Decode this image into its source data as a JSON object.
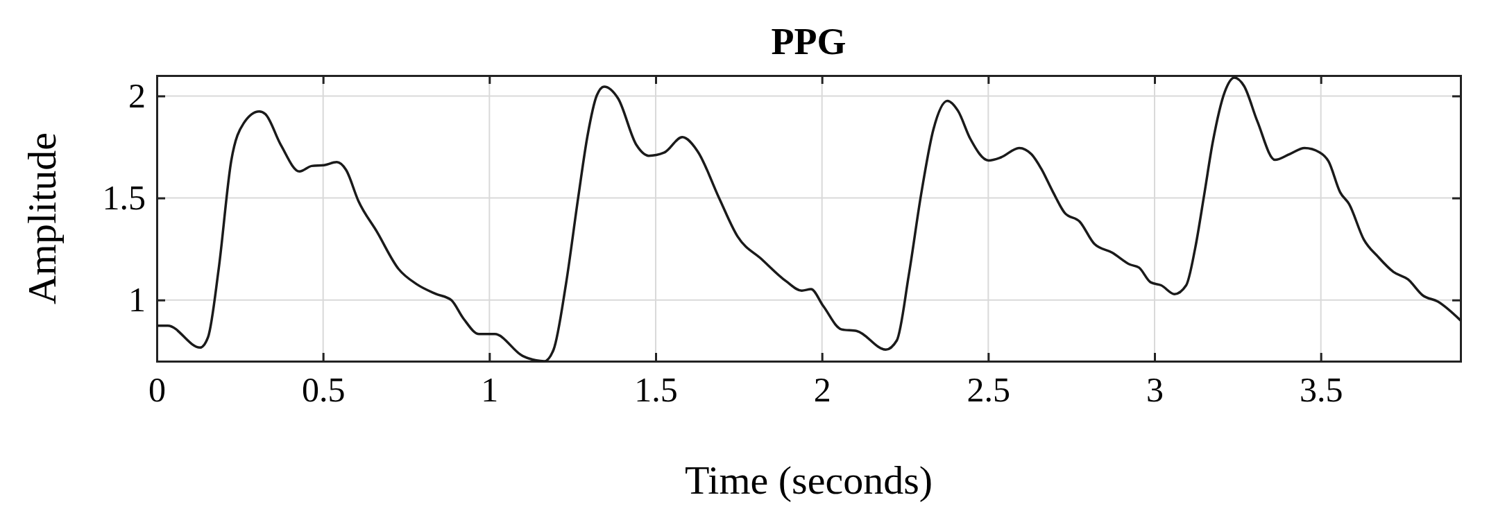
{
  "chart_data": {
    "type": "line",
    "title": "PPG",
    "xlabel": "Time (seconds)",
    "ylabel": "Amplitude",
    "xlim": [
      0,
      3.92
    ],
    "ylim": [
      0.7,
      2.1
    ],
    "xticks": [
      0,
      0.5,
      1,
      1.5,
      2,
      2.5,
      3,
      3.5
    ],
    "yticks": [
      1,
      1.5,
      2
    ],
    "grid": true,
    "series": [
      {
        "color": "#1a1a1a",
        "line_style": "solid",
        "x": [
          0,
          0.033,
          0.13,
          0.154,
          0.186,
          0.224,
          0.261,
          0.308,
          0.326,
          0.373,
          0.429,
          0.466,
          0.503,
          0.541,
          0.569,
          0.606,
          0.662,
          0.727,
          0.783,
          0.839,
          0.885,
          0.922,
          0.969,
          1.016,
          1.1,
          1.165,
          1.193,
          1.23,
          1.267,
          1.295,
          1.323,
          1.345,
          1.387,
          1.442,
          1.479,
          1.525,
          1.58,
          1.626,
          1.69,
          1.746,
          1.82,
          1.893,
          1.939,
          1.967,
          2.004,
          2.059,
          2.105,
          2.192,
          2.225,
          2.261,
          2.298,
          2.335,
          2.377,
          2.409,
          2.446,
          2.501,
          2.538,
          2.593,
          2.63,
          2.659,
          2.695,
          2.73,
          2.775,
          2.819,
          2.873,
          2.926,
          2.953,
          2.988,
          3.02,
          3.06,
          3.095,
          3.122,
          3.149,
          3.175,
          3.211,
          3.24,
          3.269,
          3.309,
          3.362,
          3.407,
          3.451,
          3.496,
          3.523,
          3.558,
          3.585,
          3.629,
          3.673,
          3.718,
          3.762,
          3.807,
          3.851,
          3.92
        ],
        "values": [
          0.874,
          0.874,
          0.767,
          0.818,
          1.152,
          1.684,
          1.866,
          1.924,
          1.912,
          1.76,
          1.63,
          1.657,
          1.661,
          1.676,
          1.638,
          1.486,
          1.334,
          1.152,
          1.076,
          1.03,
          1.0,
          0.909,
          0.833,
          0.833,
          0.726,
          0.7,
          0.757,
          1.076,
          1.502,
          1.805,
          2.003,
          2.046,
          1.988,
          1.76,
          1.707,
          1.722,
          1.798,
          1.729,
          1.502,
          1.312,
          1.198,
          1.091,
          1.046,
          1.053,
          0.97,
          0.856,
          0.848,
          0.757,
          0.802,
          1.122,
          1.517,
          1.836,
          1.976,
          1.927,
          1.79,
          1.684,
          1.699,
          1.745,
          1.714,
          1.644,
          1.528,
          1.427,
          1.384,
          1.275,
          1.232,
          1.174,
          1.159,
          1.087,
          1.072,
          1.029,
          1.072,
          1.253,
          1.514,
          1.774,
          2.02,
          2.09,
          2.049,
          1.876,
          1.687,
          1.716,
          1.745,
          1.724,
          1.68,
          1.528,
          1.47,
          1.297,
          1.21,
          1.138,
          1.101,
          1.022,
          0.993,
          0.9
        ]
      }
    ]
  }
}
